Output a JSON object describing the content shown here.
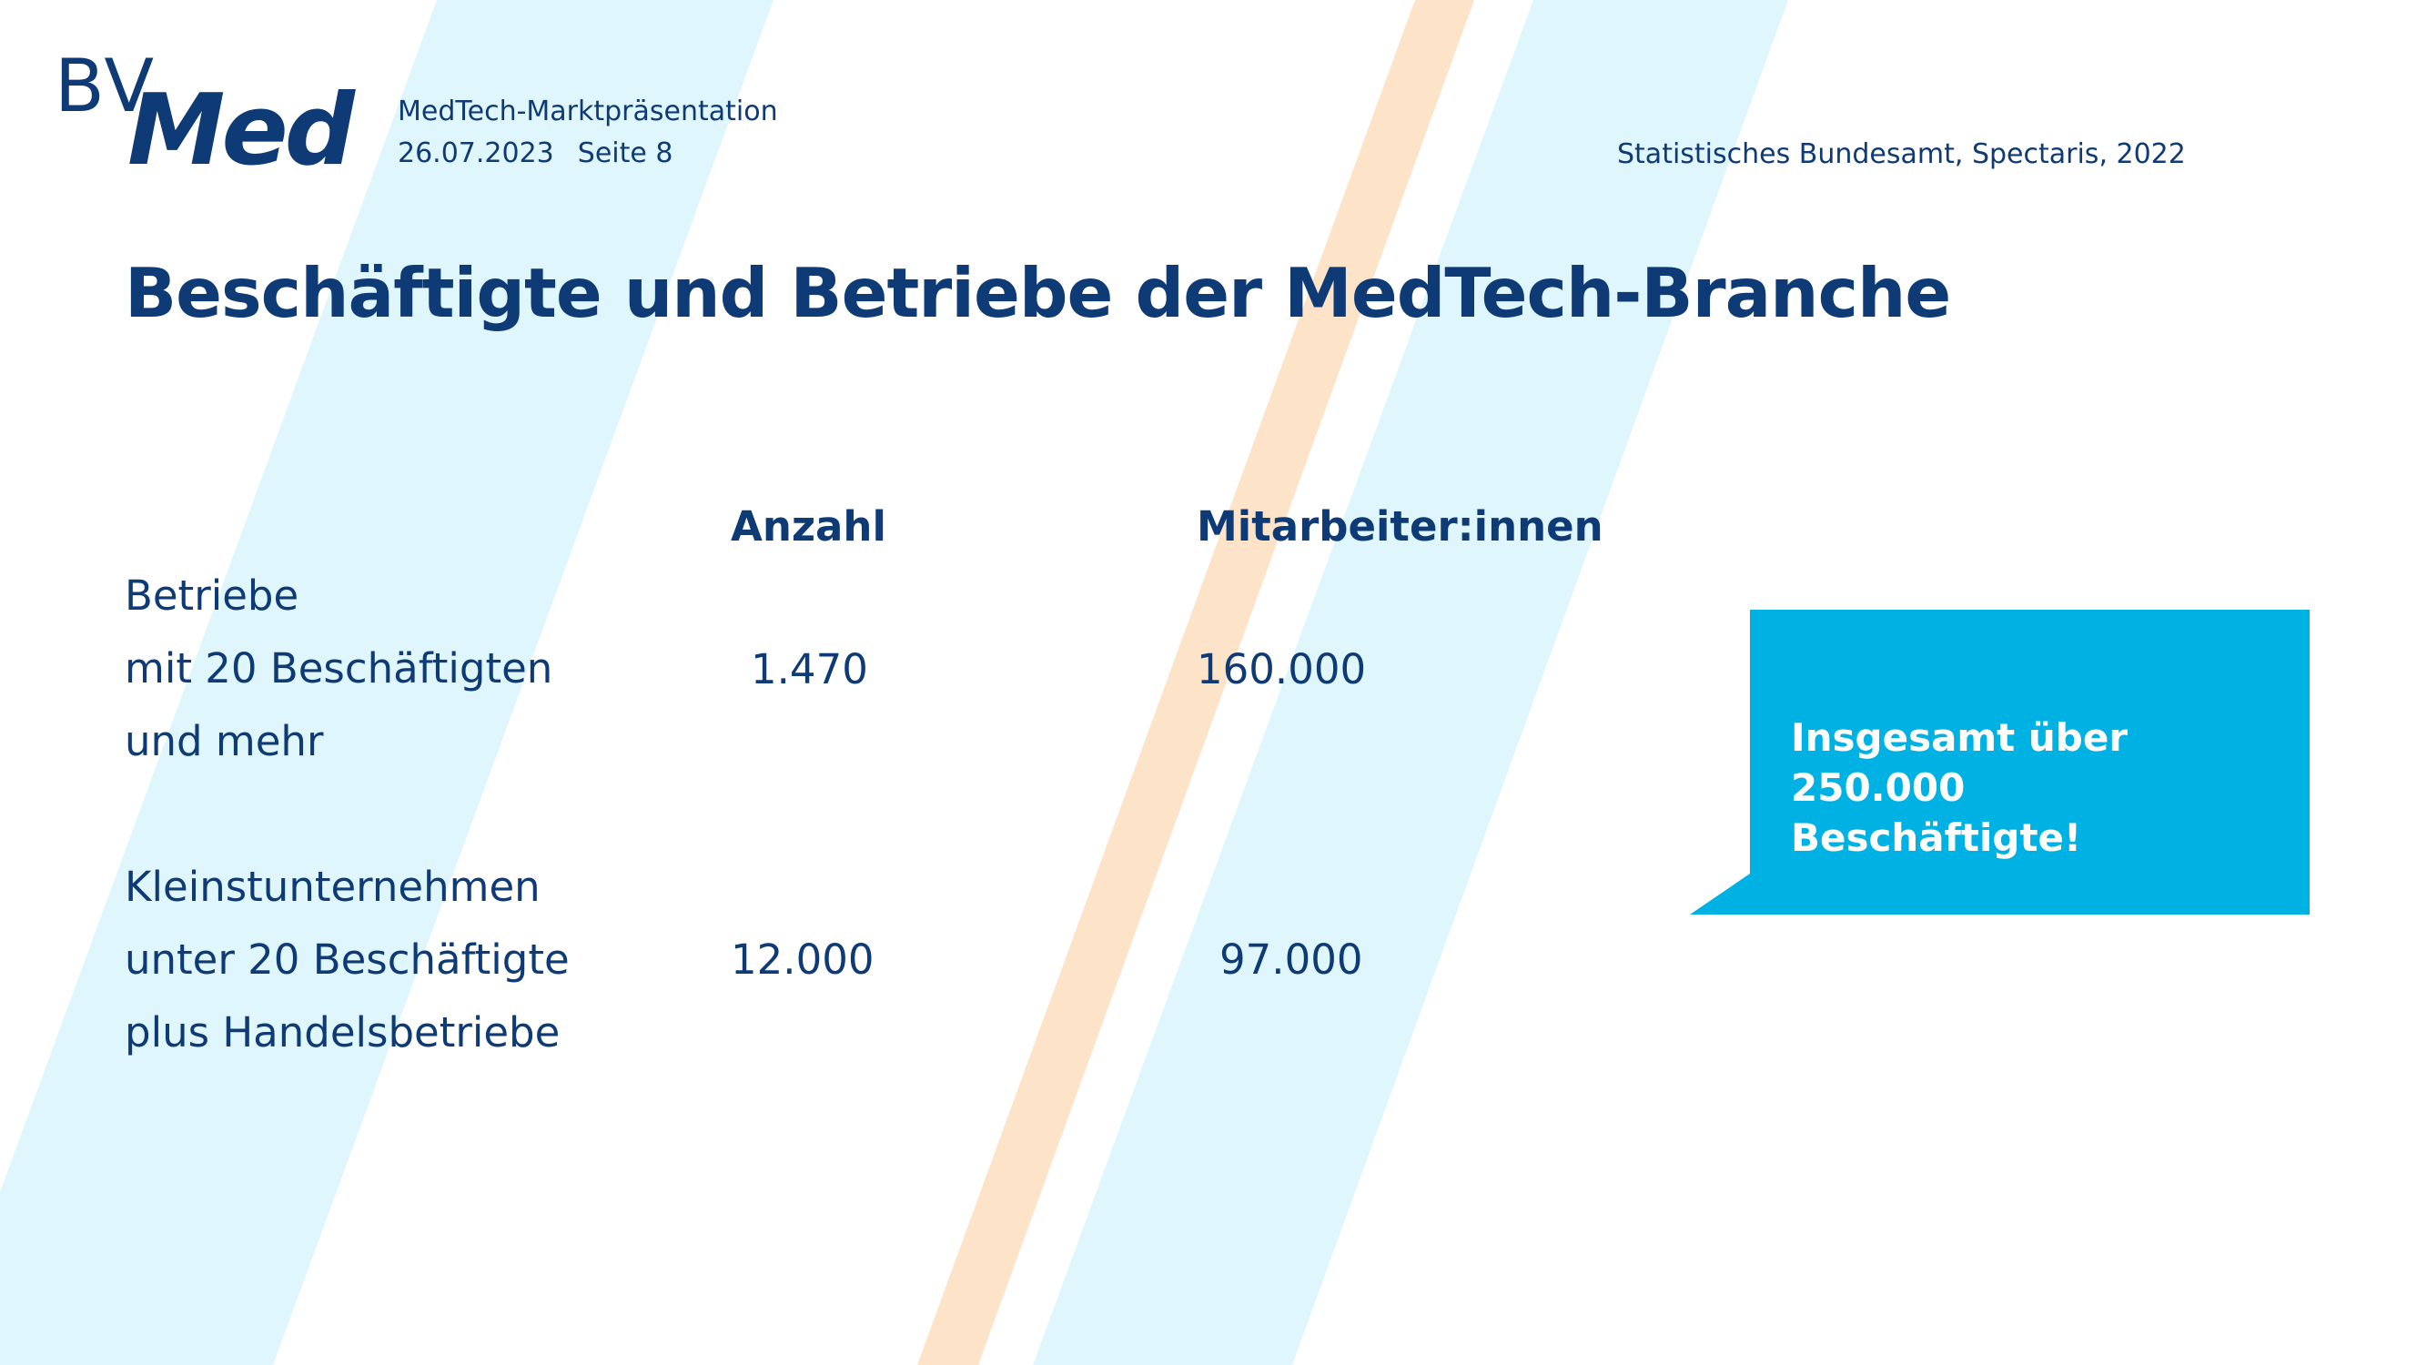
{
  "brand": {
    "logo_top": "BV",
    "logo_bottom": "Med",
    "colors": {
      "navy": "#0e3a75",
      "cyan": "#00b2e3",
      "light_cyan_stripe": "#e0f6fd",
      "peach_stripe": "#fde3c8"
    }
  },
  "header": {
    "presentation": "MedTech-Marktpräsentation",
    "date": "26.07.2023",
    "page": "Seite 8",
    "source": "Statistisches Bundesamt, Spectaris, 2022"
  },
  "title": "Beschäftigte und Betriebe der MedTech-Branche",
  "table": {
    "columns": [
      "Anzahl",
      "Mitarbeiter:innen"
    ],
    "rows": [
      {
        "label_lines": [
          "Betriebe",
          "mit 20 Beschäftigten",
          "und mehr"
        ],
        "anzahl": "1.470",
        "mitarbeiter": "160.000"
      },
      {
        "label_lines": [
          "Kleinstunternehmen",
          "unter 20 Beschäftigte",
          "plus Handelsbetriebe"
        ],
        "anzahl": "12.000",
        "mitarbeiter": "97.000"
      }
    ]
  },
  "callout": {
    "lines": [
      "Insgesamt über 250.000",
      "Beschäftigte!"
    ]
  }
}
